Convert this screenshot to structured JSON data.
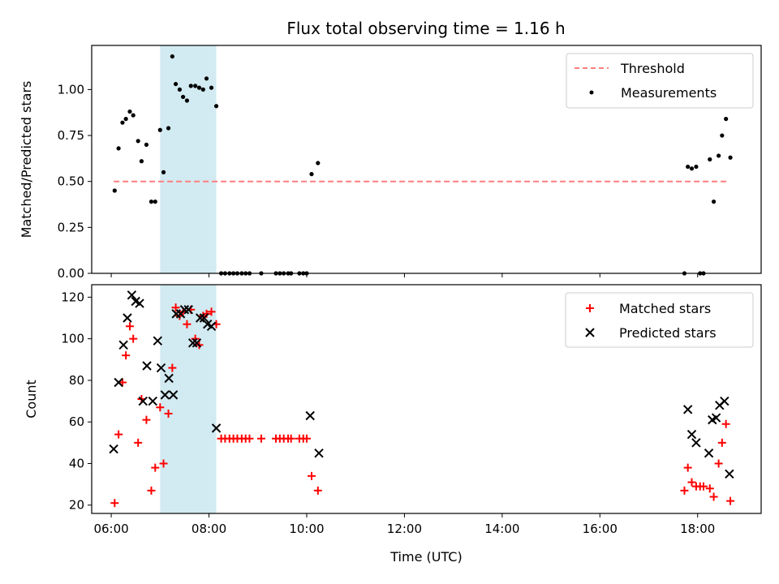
{
  "chart_data": {
    "title": "Flux total observing time = 1.16 h",
    "xlabel": "Time (UTC)",
    "xticks": [
      "06:00",
      "08:00",
      "10:00",
      "12:00",
      "14:00",
      "16:00",
      "18:00"
    ],
    "xlim_hours": [
      5.6,
      19.3
    ],
    "highlight_span_hours": [
      7.0,
      8.15
    ],
    "highlight_color": "#add8e6",
    "panels": [
      {
        "type": "scatter",
        "ylabel": "Matched/Predicted stars",
        "ylim": [
          0,
          1.24
        ],
        "yticks": [
          "0.00",
          "0.25",
          "0.50",
          "0.75",
          "1.00"
        ],
        "legend_position": "upper right",
        "threshold": {
          "name": "Threshold",
          "value": 0.5,
          "x_range_hours": [
            6.05,
            18.65
          ],
          "color": "#ff7f7f"
        },
        "series": [
          {
            "name": "Measurements",
            "color": "#000000",
            "x": [
              6.07,
              6.15,
              6.23,
              6.3,
              6.38,
              6.45,
              6.55,
              6.62,
              6.72,
              6.82,
              6.9,
              7.0,
              7.07,
              7.17,
              7.25,
              7.32,
              7.4,
              7.47,
              7.55,
              7.63,
              7.72,
              7.8,
              7.88,
              7.95,
              8.05,
              8.15,
              8.25,
              8.33,
              8.42,
              8.5,
              8.58,
              8.67,
              8.75,
              8.83,
              9.07,
              9.37,
              9.45,
              9.53,
              9.62,
              9.68,
              9.85,
              9.93,
              10.0,
              10.1,
              10.23,
              17.73,
              17.8,
              17.88,
              17.97,
              18.05,
              18.12,
              18.25,
              18.33,
              18.43,
              18.5,
              18.58,
              18.67
            ],
            "y": [
              0.45,
              0.68,
              0.82,
              0.84,
              0.88,
              0.86,
              0.72,
              0.61,
              0.7,
              0.39,
              0.39,
              0.78,
              0.55,
              0.79,
              1.18,
              1.03,
              1.0,
              0.96,
              0.94,
              1.02,
              1.02,
              1.01,
              1.0,
              1.06,
              1.01,
              0.91,
              0,
              0,
              0,
              0,
              0,
              0,
              0,
              0,
              0,
              0,
              0,
              0,
              0,
              0,
              0,
              0,
              0,
              0.54,
              0.6,
              0,
              0.58,
              0.57,
              0.58,
              0,
              0,
              0.62,
              0.39,
              0.64,
              0.75,
              0.84,
              0.63
            ]
          }
        ]
      },
      {
        "type": "scatter",
        "ylabel": "Count",
        "ylim": [
          16,
          126
        ],
        "yticks": [
          "20",
          "40",
          "60",
          "80",
          "100",
          "120"
        ],
        "legend_position": "upper right",
        "series": [
          {
            "name": "Matched stars",
            "marker": "+",
            "color": "#ff0000",
            "x": [
              6.07,
              6.15,
              6.23,
              6.3,
              6.38,
              6.45,
              6.55,
              6.62,
              6.72,
              6.82,
              6.9,
              7.0,
              7.07,
              7.17,
              7.25,
              7.32,
              7.4,
              7.47,
              7.55,
              7.63,
              7.72,
              7.8,
              7.88,
              7.95,
              8.05,
              8.15,
              8.25,
              8.33,
              8.42,
              8.5,
              8.58,
              8.67,
              8.75,
              8.83,
              9.07,
              9.37,
              9.45,
              9.53,
              9.62,
              9.68,
              9.85,
              9.93,
              10.0,
              10.1,
              10.23,
              17.73,
              17.8,
              17.88,
              17.97,
              18.05,
              18.12,
              18.25,
              18.33,
              18.43,
              18.5,
              18.58,
              18.67
            ],
            "y": [
              21,
              54,
              79,
              92,
              106,
              100,
              50,
              71,
              61,
              27,
              38,
              67,
              40,
              64,
              86,
              115,
              111,
              113,
              107,
              114,
              100,
              97,
              111,
              112,
              113,
              107,
              52,
              52,
              52,
              52,
              52,
              52,
              52,
              52,
              52,
              52,
              52,
              52,
              52,
              52,
              52,
              52,
              52,
              34,
              27,
              27,
              38,
              31,
              29,
              29,
              29,
              28,
              24,
              40,
              50,
              59,
              22
            ]
          },
          {
            "name": "Predicted stars",
            "marker": "x",
            "color": "#000000",
            "x": [
              6.05,
              6.15,
              6.25,
              6.33,
              6.42,
              6.5,
              6.58,
              6.65,
              6.73,
              6.85,
              6.95,
              7.02,
              7.1,
              7.18,
              7.27,
              7.33,
              7.42,
              7.5,
              7.58,
              7.67,
              7.75,
              7.82,
              7.9,
              7.97,
              8.05,
              8.15,
              10.07,
              10.25,
              17.8,
              17.88,
              17.97,
              18.23,
              18.3,
              18.38,
              18.45,
              18.55,
              18.65
            ],
            "y": [
              47,
              79,
              97,
              110,
              121,
              118,
              117,
              70,
              87,
              70,
              99,
              86,
              73,
              81,
              73,
              112,
              112,
              114,
              114,
              98,
              98,
              110,
              110,
              107,
              106,
              57,
              63,
              45,
              66,
              54,
              50,
              45,
              61,
              62,
              68,
              70,
              35
            ]
          }
        ]
      }
    ]
  }
}
